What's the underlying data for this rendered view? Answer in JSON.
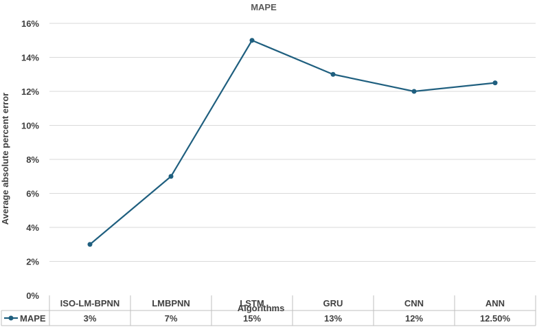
{
  "chart_data": {
    "type": "line",
    "title": "MAPE",
    "xlabel": "Algorithms",
    "ylabel": "Average absolute percent error",
    "categories": [
      "ISO-LM-BPNN",
      "LMBPNN",
      "LSTM",
      "GRU",
      "CNN",
      "ANN"
    ],
    "series": [
      {
        "name": "MAPE",
        "values": [
          3,
          7,
          15,
          13,
          12,
          12.5
        ]
      }
    ],
    "table_values": [
      "3%",
      "7%",
      "15%",
      "13%",
      "12%",
      "12.50%"
    ],
    "yticks": [
      "0%",
      "2%",
      "4%",
      "6%",
      "8%",
      "10%",
      "12%",
      "14%",
      "16%"
    ],
    "ylim": [
      0,
      16
    ],
    "grid": true,
    "legend": "data-table",
    "color": "#1f5f7f"
  }
}
